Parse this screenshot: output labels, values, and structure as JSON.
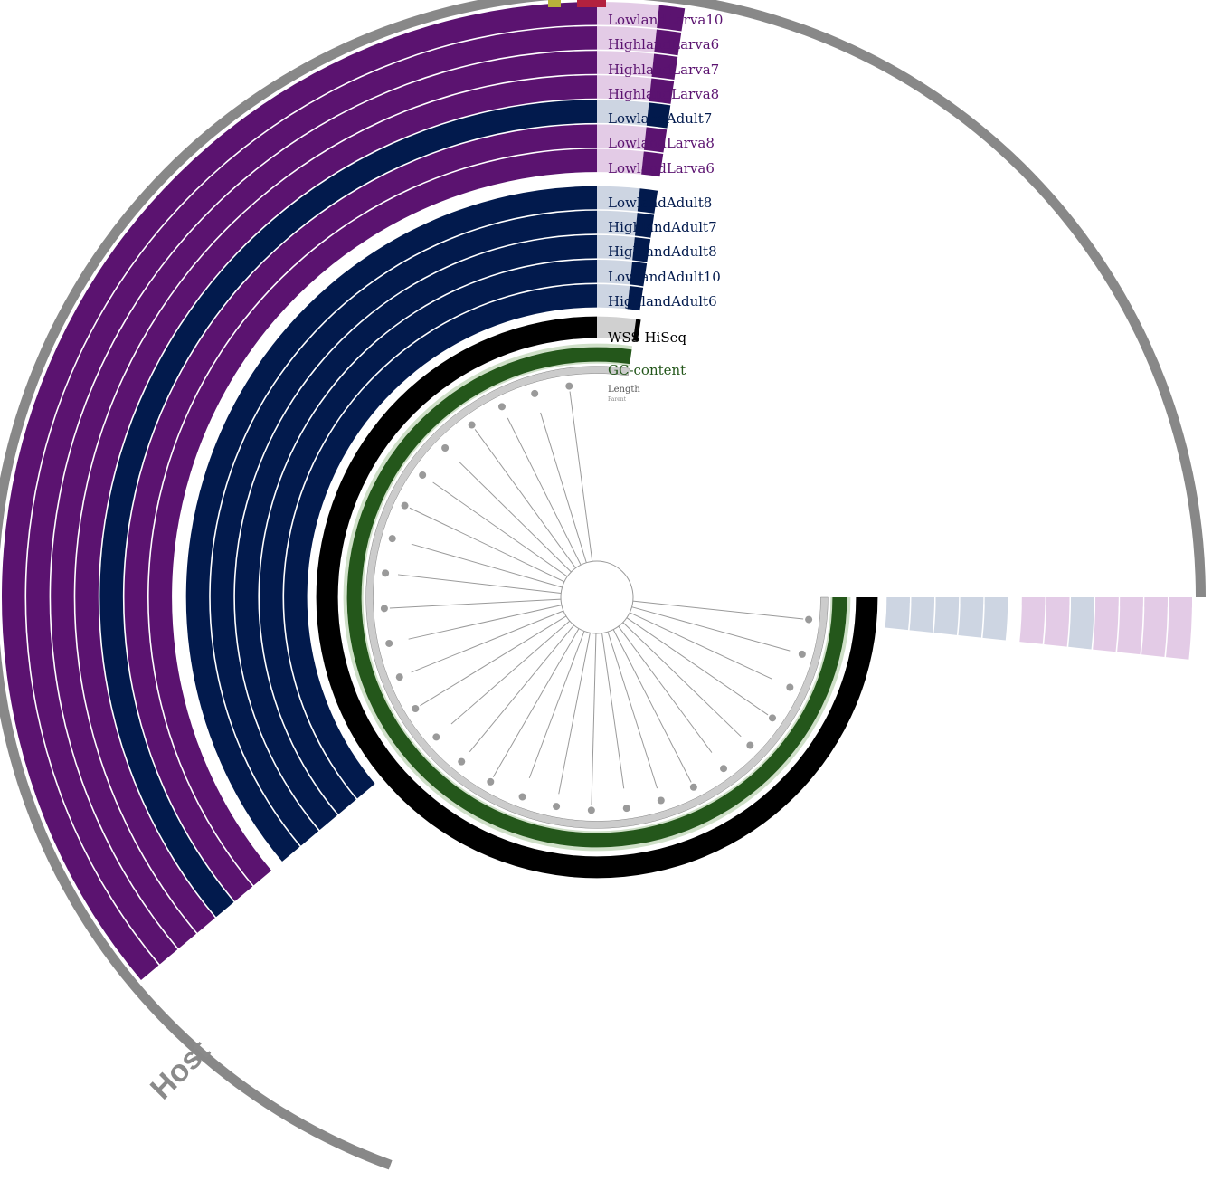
{
  "colors": {
    "larva": "#5b1370",
    "larva_light": "#e3cbe6",
    "adult": "#021a4d",
    "adult_light": "#cdd5e2",
    "wss": "#000000",
    "wss_light": "#d0d0d0",
    "gc": "#24571b",
    "gc_light": "#cfe0c8",
    "host": "#888888",
    "bin_olive": "#b8b23a",
    "bin_red": "#b3213f",
    "tree": "#9a9a9a"
  },
  "tracks": [
    {
      "id": "larva10",
      "label": "LowlandLarva10",
      "kind": "larva"
    },
    {
      "id": "hlarva6",
      "label": "HighlandLarva6",
      "kind": "larva"
    },
    {
      "id": "hlarva7",
      "label": "HighlandLarva7",
      "kind": "larva"
    },
    {
      "id": "hlarva8",
      "label": "HighlandLarva8",
      "kind": "larva"
    },
    {
      "id": "ladult7",
      "label": "LowlandAdult7",
      "kind": "adult"
    },
    {
      "id": "llarva8",
      "label": "LowlandLarva8",
      "kind": "larva"
    },
    {
      "id": "llarva6",
      "label": "LowlandLarva6",
      "kind": "larva"
    },
    {
      "id": "ladult8",
      "label": "LowlandAdult8",
      "kind": "adult"
    },
    {
      "id": "hadult7",
      "label": "HighlandAdult7",
      "kind": "adult"
    },
    {
      "id": "hadult8",
      "label": "HighlandAdult8",
      "kind": "adult"
    },
    {
      "id": "ladult10",
      "label": "LowlandAdult10",
      "kind": "adult"
    },
    {
      "id": "hadult6",
      "label": "HighlandAdult6",
      "kind": "adult"
    }
  ],
  "layers": {
    "wss": "WSS HiSeq",
    "gc": "GC-content",
    "length": "Length",
    "parent": "Parent"
  },
  "bins": {
    "host": "Host"
  }
}
